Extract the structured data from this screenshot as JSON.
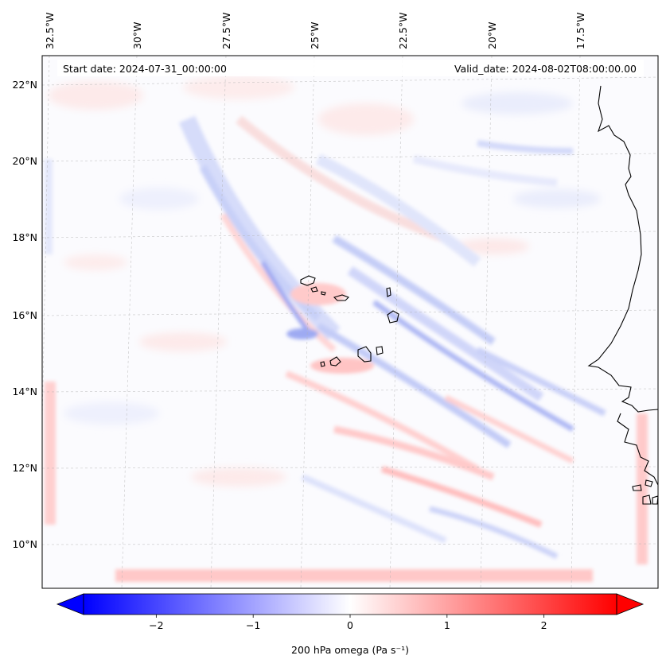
{
  "map": {
    "start_date": "Start date: 2024-07-31_00:00:00",
    "valid_date": "Valid_date: 2024-08-02T08:00:00.00",
    "lon_labels": [
      "32.5°W",
      "30°W",
      "27.5°W",
      "25°W",
      "22.5°W",
      "20°W",
      "17.5°W"
    ],
    "lat_labels": [
      "22°N",
      "20°N",
      "18°N",
      "16°N",
      "14°N",
      "12°N",
      "10°N"
    ],
    "field": "200 hPa omega",
    "coastline_color": "#000000",
    "gridline_color": "#b0b0b0"
  },
  "colorbar": {
    "label": "200 hPa omega (Pa s⁻¹)",
    "ticks": [
      "−2",
      "−1",
      "0",
      "1",
      "2"
    ],
    "tick_values": [
      -2,
      -1,
      0,
      1,
      2
    ],
    "range": [
      -2.75,
      2.75
    ],
    "colormap": "bwr",
    "low_color": "#0000ff",
    "mid_color": "#ffffff",
    "high_color": "#ff0000",
    "extend": "both"
  }
}
